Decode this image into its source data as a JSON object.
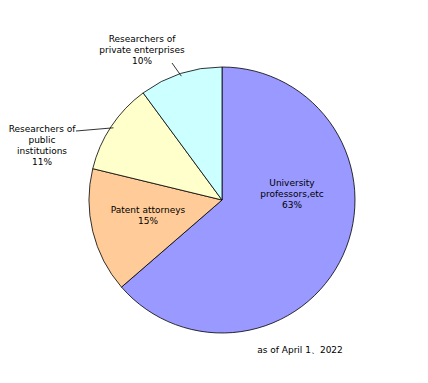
{
  "chart_data": {
    "type": "pie",
    "categories": [
      "University professors,etc",
      "Patent attorneys",
      "Researchers of public institutions",
      "Researchers of private enterprises"
    ],
    "values": [
      63,
      15,
      11,
      10
    ],
    "value_labels": [
      "63%",
      "15%",
      "11%",
      "10%"
    ],
    "colors": [
      "#9999ff",
      "#ffcc99",
      "#ffffcc",
      "#ccffff"
    ],
    "data_labels": true,
    "annotations": [
      "as of April 1、2022"
    ]
  }
}
